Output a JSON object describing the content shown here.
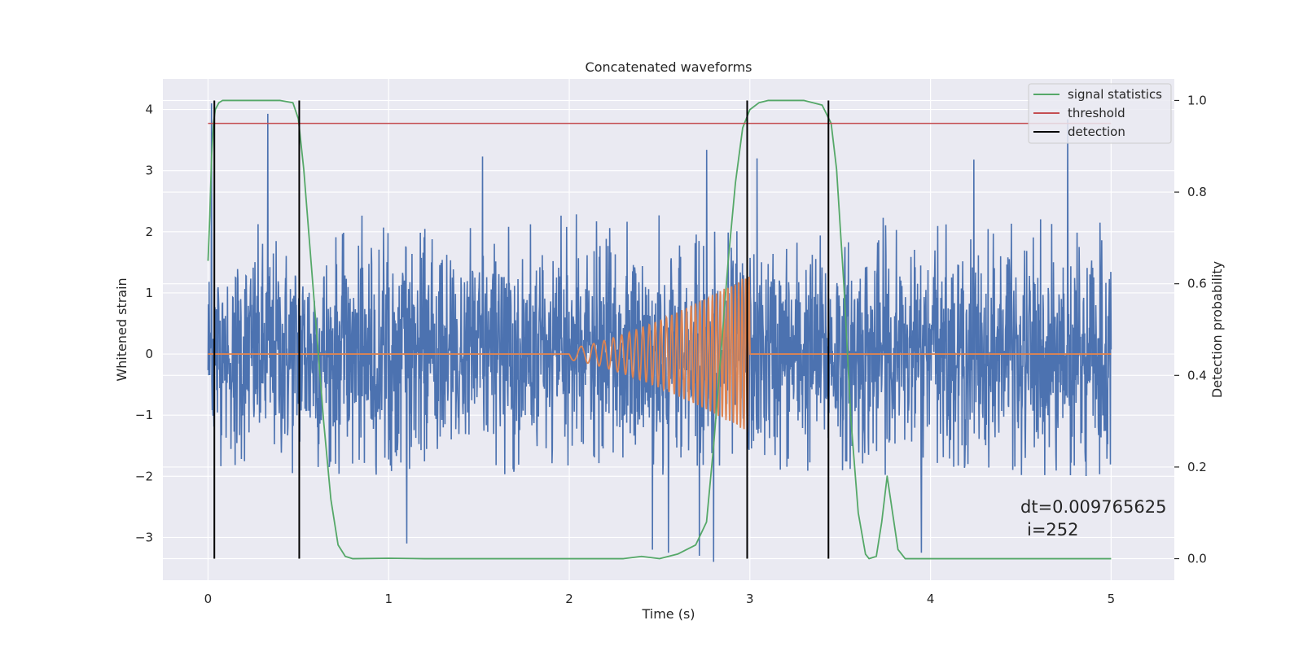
{
  "chart_data": {
    "type": "line",
    "title": "Concatenated waveforms",
    "xlabel": "Time (s)",
    "ylabel": "Whitened strain",
    "ylabel_right": "Detection probability",
    "xlim": [
      -0.25,
      5.35
    ],
    "ylim": [
      -3.7,
      4.5
    ],
    "ylim_right": [
      -0.047,
      1.047
    ],
    "xticks": [
      0,
      1,
      2,
      3,
      4,
      5
    ],
    "xtick_labels": [
      "0",
      "1",
      "2",
      "3",
      "4",
      "5"
    ],
    "yticks": [
      4,
      3,
      2,
      1,
      0,
      -1,
      -2,
      -3
    ],
    "ytick_labels": [
      "4",
      "3",
      "2",
      "1",
      "0",
      "−1",
      "−2",
      "−3"
    ],
    "yticks_right": [
      1.0,
      0.8,
      0.6,
      0.4,
      0.2,
      0.0
    ],
    "ytick_labels_right": [
      "1.0",
      "0.8",
      "0.6",
      "0.4",
      "0.2",
      "0.0"
    ],
    "grid": true,
    "legend_position": "top-right",
    "series": [
      {
        "name": "",
        "kind": "noise",
        "axis": "left",
        "color": "#4c72b0",
        "x_range": [
          0,
          5
        ],
        "typical_min": -2.0,
        "typical_max": 2.3,
        "peaks": [
          [
            0.33,
            3.93
          ],
          [
            1.52,
            3.23
          ],
          [
            2.76,
            3.34
          ],
          [
            4.76,
            3.84
          ],
          [
            4.24,
            3.18
          ],
          [
            3.04,
            3.2
          ],
          [
            0.02,
            4.1
          ],
          [
            2.46,
            -3.2
          ],
          [
            2.55,
            -3.25
          ],
          [
            3.95,
            -3.25
          ],
          [
            2.8,
            -3.4
          ],
          [
            2.72,
            -3.3
          ],
          [
            1.1,
            -3.1
          ]
        ]
      },
      {
        "name": "",
        "kind": "chirp",
        "axis": "left",
        "color": "#dd8452",
        "x_range": [
          0,
          5
        ],
        "chirp_start": 2.0,
        "chirp_end": 3.0,
        "amp_start": 0.1,
        "amp_end": 1.3
      },
      {
        "name": "signal statistics",
        "axis": "right",
        "color": "#55a868",
        "x": [
          0,
          0.01,
          0.02,
          0.03,
          0.04,
          0.06,
          0.08,
          0.12,
          0.2,
          0.3,
          0.4,
          0.47,
          0.5,
          0.53,
          0.56,
          0.6,
          0.64,
          0.68,
          0.72,
          0.76,
          0.8,
          1.0,
          1.2,
          1.5,
          2.0,
          2.3,
          2.4,
          2.5,
          2.6,
          2.7,
          2.76,
          2.8,
          2.84,
          2.88,
          2.92,
          2.96,
          3.0,
          3.05,
          3.1,
          3.3,
          3.4,
          3.45,
          3.48,
          3.52,
          3.56,
          3.6,
          3.64,
          3.66,
          3.7,
          3.73,
          3.76,
          3.79,
          3.82,
          3.86,
          3.9,
          4.5,
          5.0
        ],
        "y": [
          0.65,
          0.75,
          0.88,
          0.95,
          0.98,
          0.995,
          1.0,
          1.0,
          1.0,
          1.0,
          1.0,
          0.995,
          0.96,
          0.85,
          0.7,
          0.5,
          0.3,
          0.13,
          0.03,
          0.005,
          0.0,
          0.001,
          0.0,
          0.0,
          0.0,
          0.0,
          0.005,
          0.0,
          0.01,
          0.03,
          0.08,
          0.25,
          0.45,
          0.65,
          0.82,
          0.94,
          0.98,
          0.995,
          1.0,
          1.0,
          0.99,
          0.95,
          0.85,
          0.6,
          0.3,
          0.1,
          0.01,
          0.0,
          0.005,
          0.08,
          0.18,
          0.1,
          0.02,
          0.0,
          0.0,
          0.0,
          0.0
        ]
      },
      {
        "name": "threshold",
        "axis": "right",
        "color": "#c44e52",
        "x": [
          0,
          5
        ],
        "y": [
          0.95,
          0.95
        ]
      },
      {
        "name": "detection",
        "axis": "right",
        "kind": "vlines",
        "color": "#000000",
        "x": [
          0.035,
          0.505,
          2.985,
          3.435
        ],
        "y_range": [
          0.0,
          1.0
        ]
      }
    ],
    "annotations": [
      "dt=0.009765625",
      "i=252"
    ]
  }
}
